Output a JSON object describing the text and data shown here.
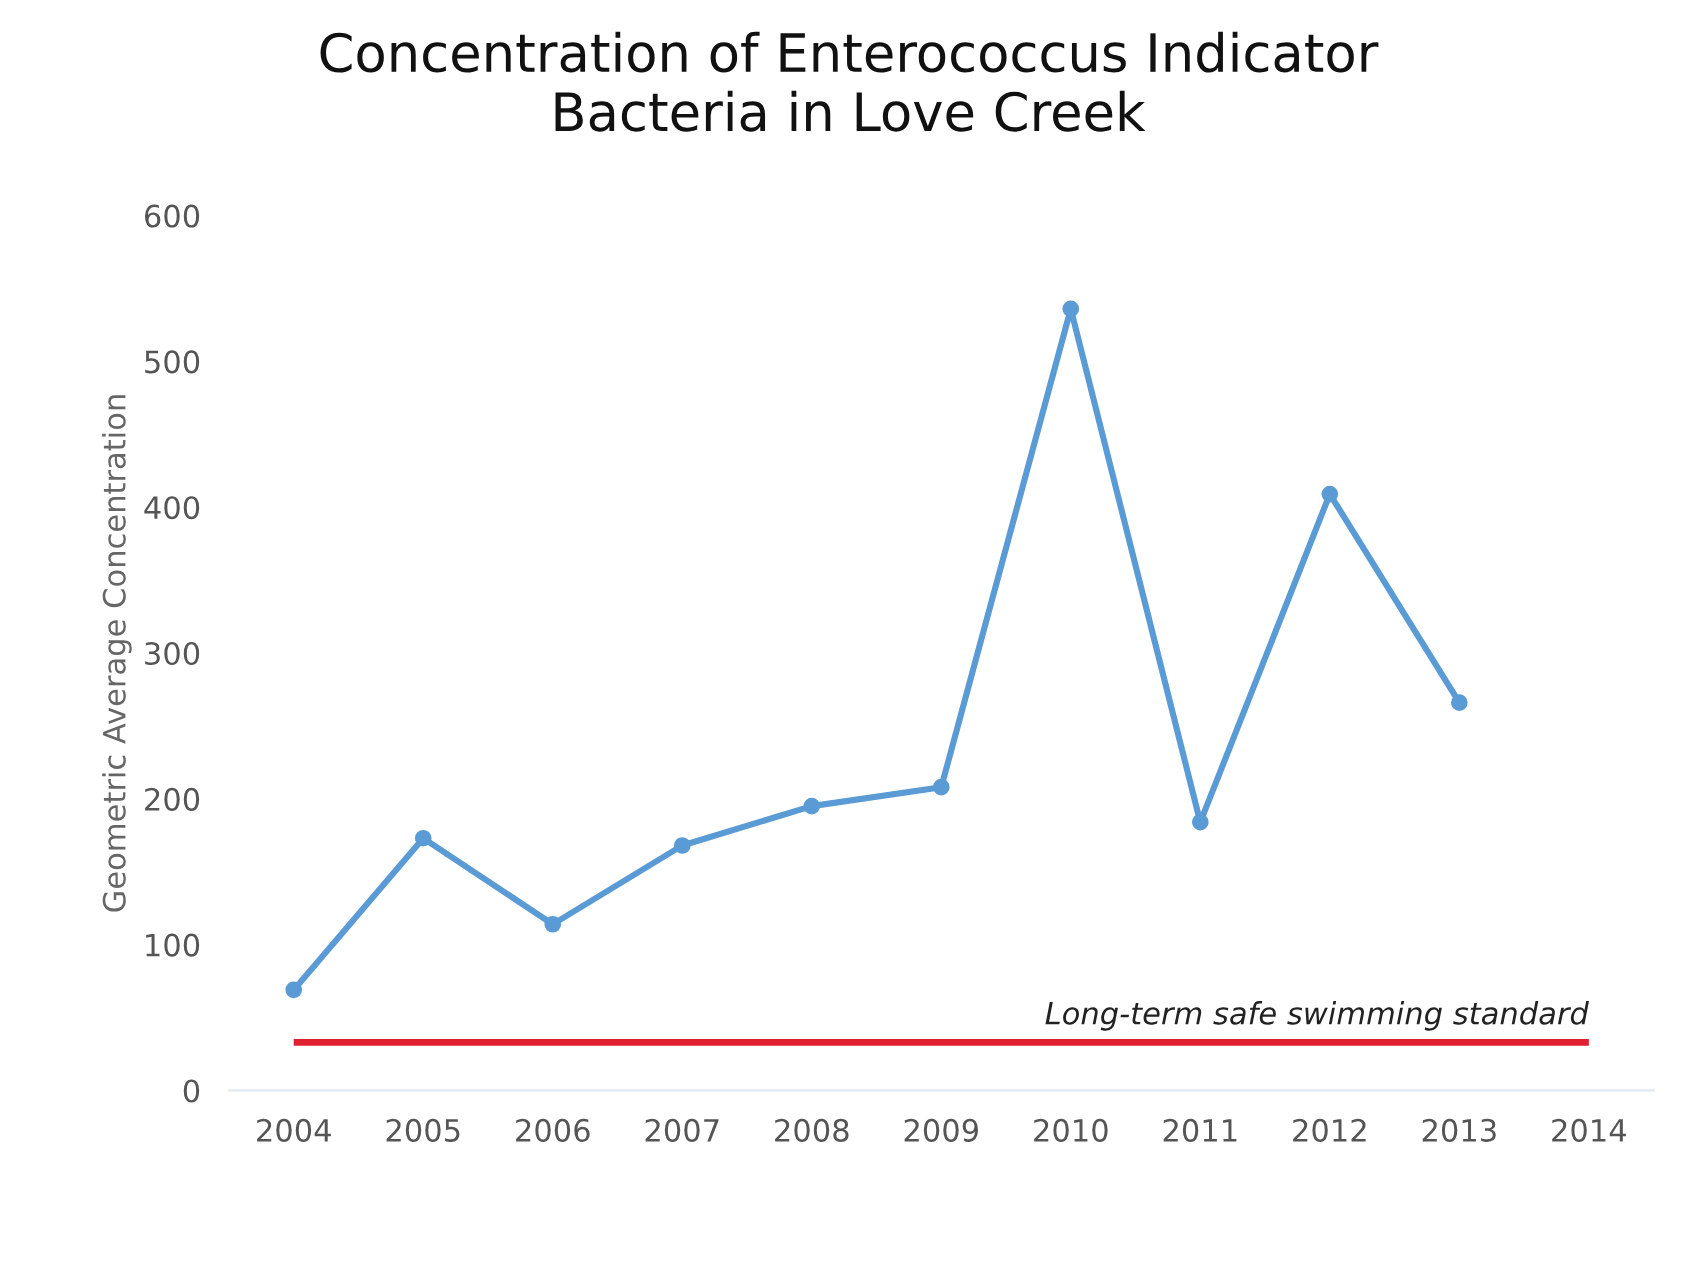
{
  "chart_data": {
    "type": "line",
    "title": "Concentration of Enterococcus Indicator\nBacteria in Love Creek",
    "ylabel": "Geometric Average Concentration",
    "categories": [
      "2004",
      "2005",
      "2006",
      "2007",
      "2008",
      "2009",
      "2010",
      "2011",
      "2012",
      "2013",
      "2014"
    ],
    "series": [
      {
        "color": "#5b9bd5",
        "values": [
          69,
          173,
          114,
          168,
          195,
          208,
          536,
          184,
          409,
          266,
          null
        ]
      }
    ],
    "ylim": [
      0,
      600
    ],
    "yticks": [
      0,
      100,
      200,
      300,
      400,
      500,
      600
    ],
    "marker": "circle",
    "line_style": "solid",
    "grid": false,
    "ref_lines": [
      {
        "axis": "y",
        "value": 33,
        "label": "Long-term safe swimming standard",
        "color": "#e02030",
        "line_style": "solid"
      }
    ]
  }
}
